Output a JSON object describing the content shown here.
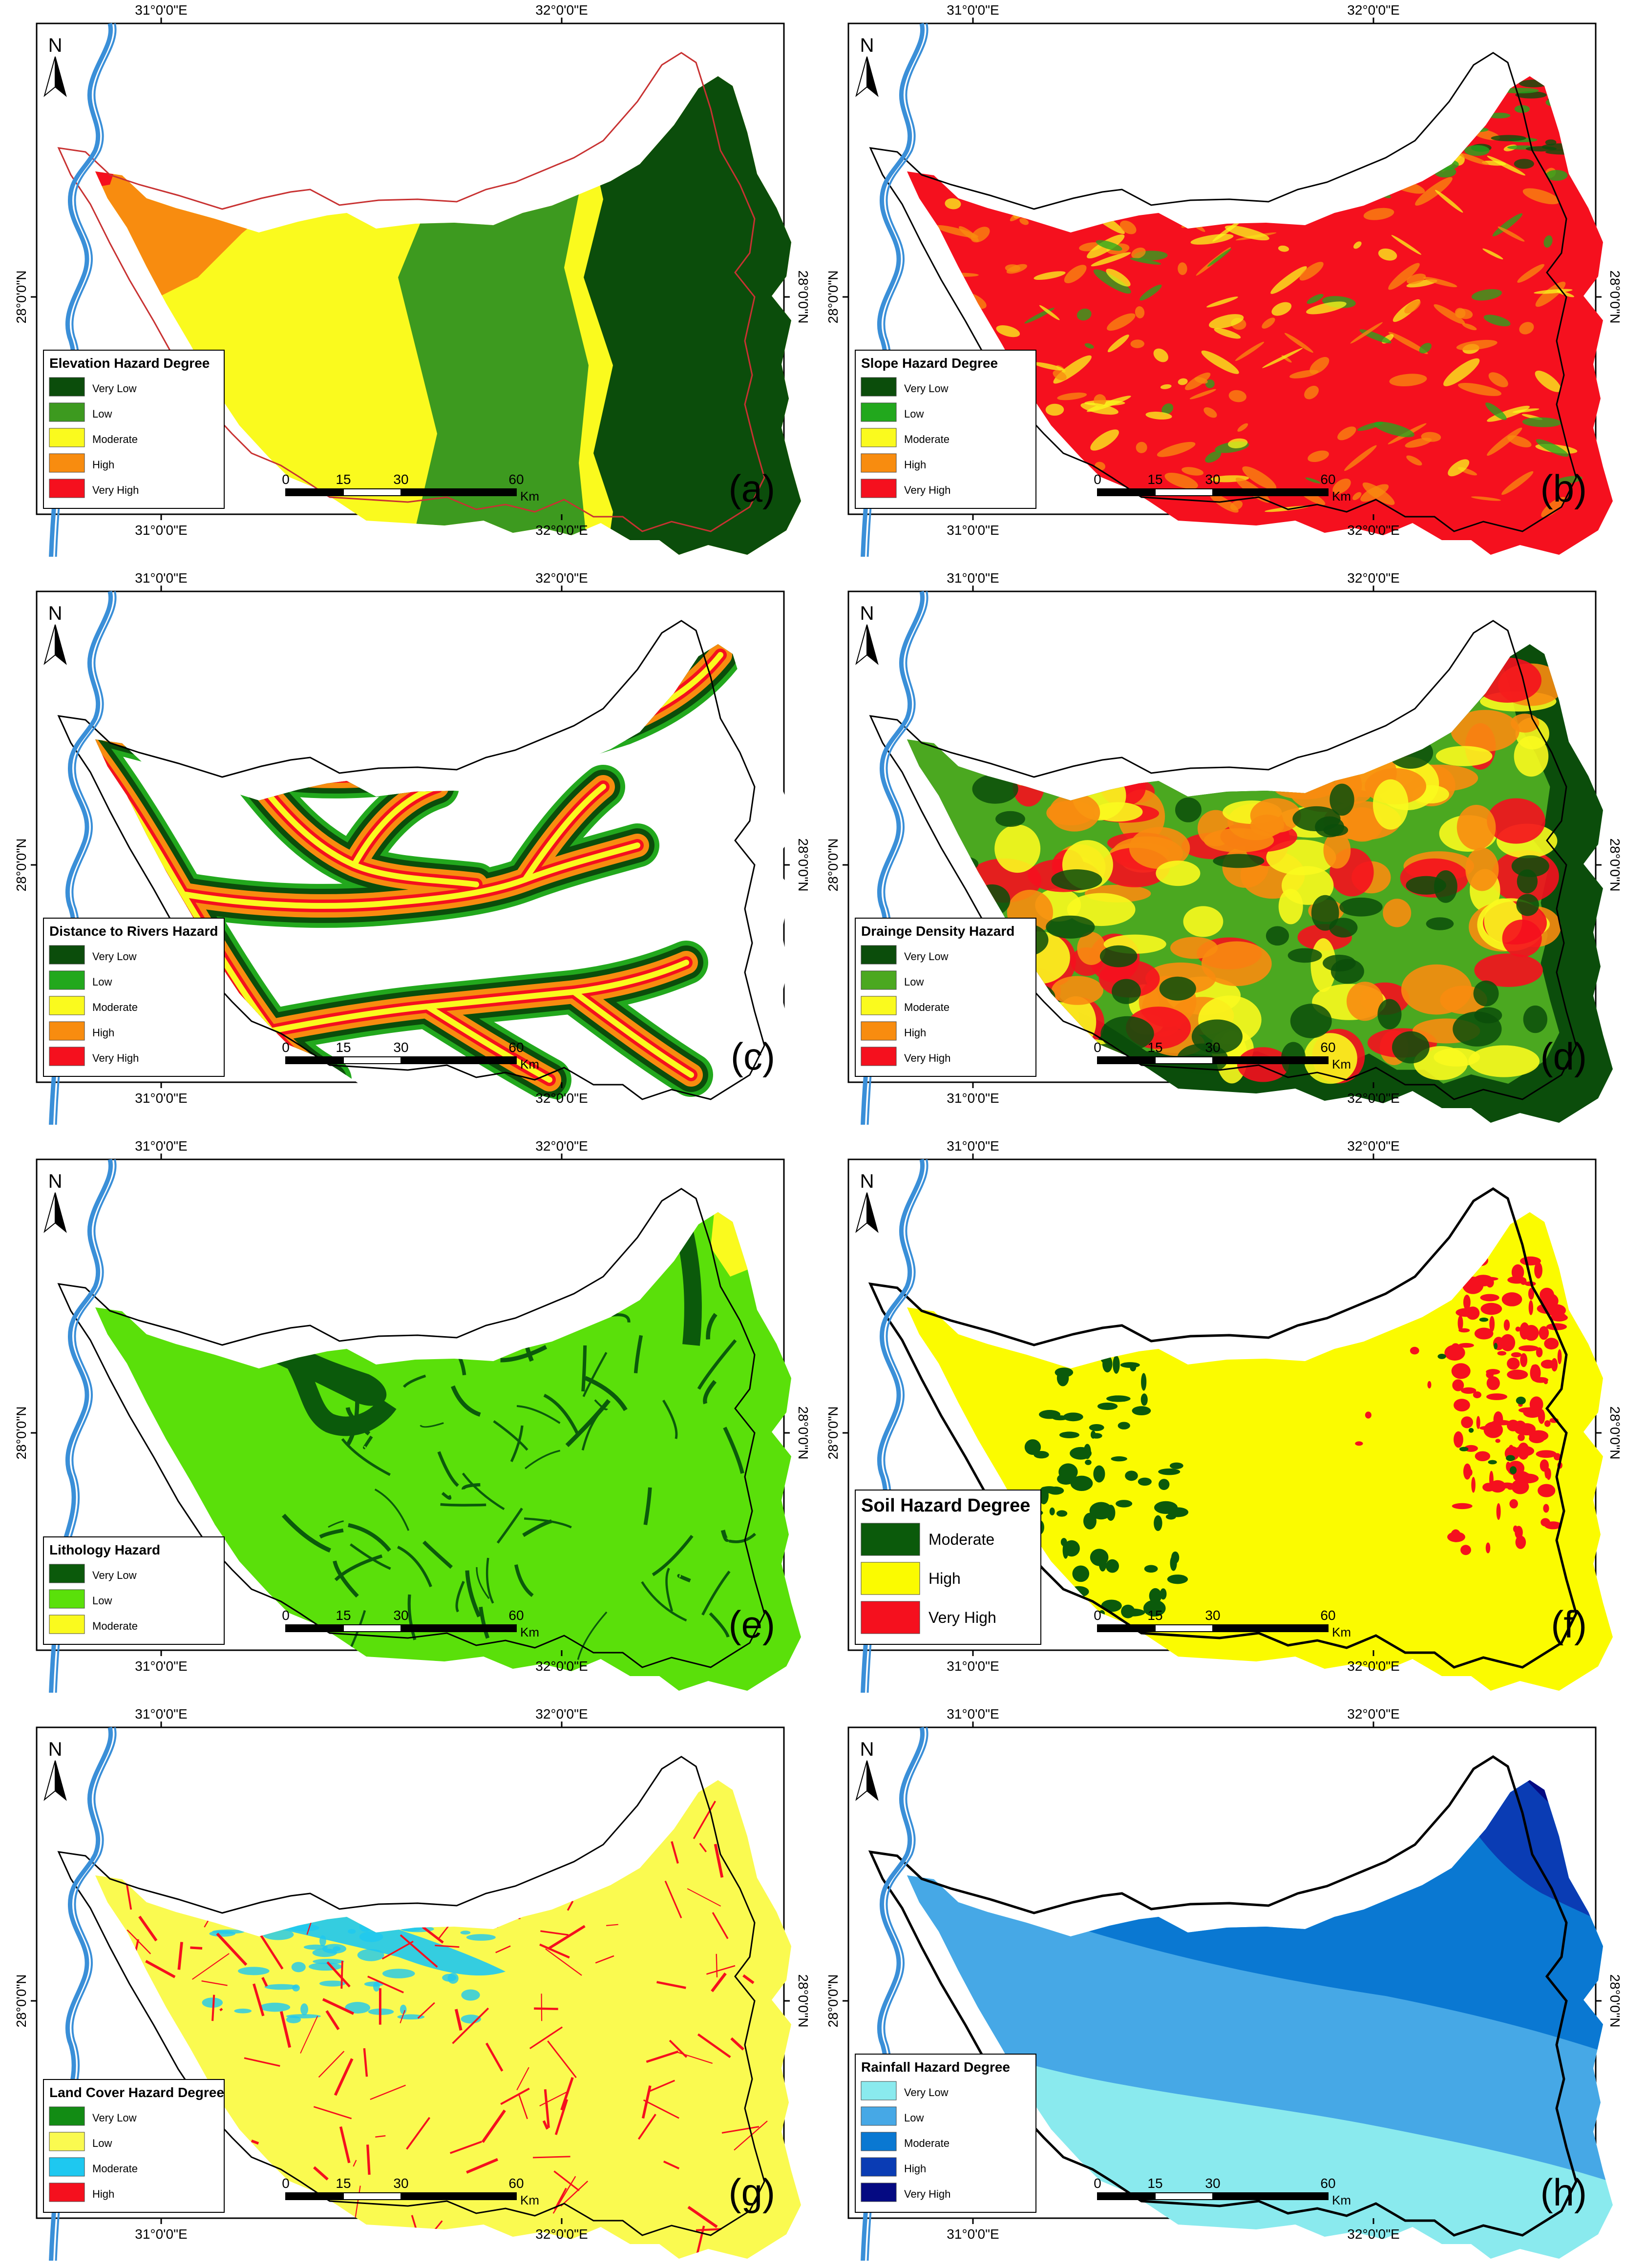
{
  "coordinates": {
    "lon_left": "31°0'0\"E",
    "lon_right": "32°0'0\"E",
    "lat": "28°0'0\"N"
  },
  "north_arrow": {
    "label": "N",
    "icon": "north-arrow-icon"
  },
  "scale_bar": {
    "ticks": [
      "0",
      "15",
      "30",
      "60"
    ],
    "unit": "Km"
  },
  "panels": [
    {
      "id": "a",
      "tag": "(a)",
      "legend": {
        "title": "Elevation Hazard Degree",
        "items": [
          {
            "label": "Very Low",
            "color": "#0b4d0b"
          },
          {
            "label": "Low",
            "color": "#3d9a1f"
          },
          {
            "label": "Moderate",
            "color": "#fafa1e"
          },
          {
            "label": "High",
            "color": "#f88c0f"
          },
          {
            "label": "Very High",
            "color": "#f5101e"
          }
        ]
      }
    },
    {
      "id": "b",
      "tag": "(b)",
      "legend": {
        "title": "Slope Hazard Degree",
        "items": [
          {
            "label": "Very Low",
            "color": "#0b4d0b"
          },
          {
            "label": "Low",
            "color": "#22a81d"
          },
          {
            "label": "Moderate",
            "color": "#fafa1e"
          },
          {
            "label": "High",
            "color": "#f88c0f"
          },
          {
            "label": "Very High",
            "color": "#f5101e"
          }
        ]
      }
    },
    {
      "id": "c",
      "tag": "(c)",
      "legend": {
        "title": "Distance to Rivers Hazard",
        "items": [
          {
            "label": "Very Low",
            "color": "#0b4d0b"
          },
          {
            "label": "Low",
            "color": "#22a81d"
          },
          {
            "label": "Moderate",
            "color": "#fafa1e"
          },
          {
            "label": "High",
            "color": "#f88c0f"
          },
          {
            "label": "Very High",
            "color": "#f5101e"
          }
        ]
      }
    },
    {
      "id": "d",
      "tag": "(d)",
      "legend": {
        "title": "Drainge Density Hazard",
        "items": [
          {
            "label": "Very Low",
            "color": "#0b4d0b"
          },
          {
            "label": "Low",
            "color": "#4ba820"
          },
          {
            "label": "Moderate",
            "color": "#fafa1e"
          },
          {
            "label": "High",
            "color": "#f88c0f"
          },
          {
            "label": "Very High",
            "color": "#f5101e"
          }
        ]
      }
    },
    {
      "id": "e",
      "tag": "(e)",
      "legend": {
        "title": "Lithology Hazard",
        "items": [
          {
            "label": "Very Low",
            "color": "#0b5a0b"
          },
          {
            "label": "Low",
            "color": "#5ae00a"
          },
          {
            "label": "Moderate",
            "color": "#fafa1e"
          }
        ]
      }
    },
    {
      "id": "f",
      "tag": "(f)",
      "legend": {
        "title": "Soil Hazard Degree",
        "items": [
          {
            "label": "Moderate",
            "color": "#0b5a0b"
          },
          {
            "label": "High",
            "color": "#fbfb00"
          },
          {
            "label": "Very High",
            "color": "#f5101e"
          }
        ]
      }
    },
    {
      "id": "g",
      "tag": "(g)",
      "legend": {
        "title": "Land Cover Hazard Degree",
        "items": [
          {
            "label": "Very Low",
            "color": "#128c14"
          },
          {
            "label": "Low",
            "color": "#fafa50"
          },
          {
            "label": "Moderate",
            "color": "#1ec8f0"
          },
          {
            "label": "High",
            "color": "#f5101e"
          }
        ]
      }
    },
    {
      "id": "h",
      "tag": "(h)",
      "legend": {
        "title": "Rainfall Hazard Degree",
        "items": [
          {
            "label": "Very Low",
            "color": "#8aeaee"
          },
          {
            "label": "Low",
            "color": "#46a8e6"
          },
          {
            "label": "Moderate",
            "color": "#0a78d2"
          },
          {
            "label": "High",
            "color": "#0a3cb4"
          },
          {
            "label": "Very High",
            "color": "#050a82"
          }
        ]
      }
    }
  ]
}
